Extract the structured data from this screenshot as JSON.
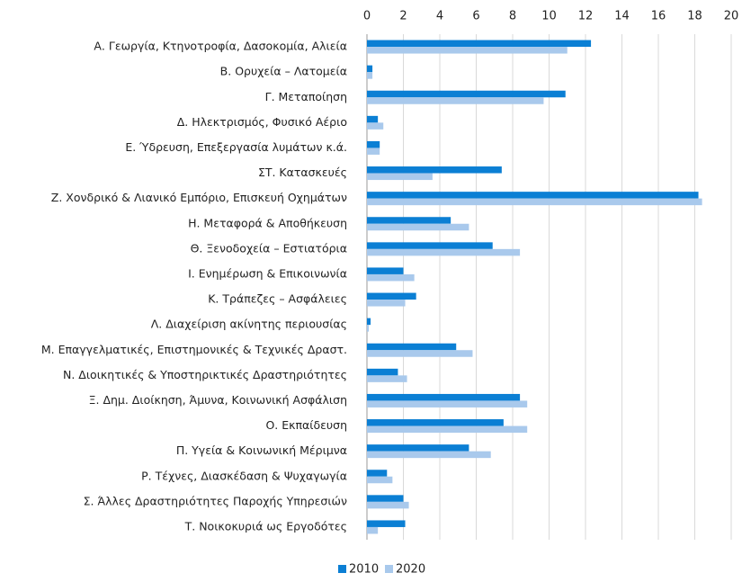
{
  "chart_data": {
    "type": "hbar",
    "categories": [
      "Α. Γεωργία, Κτηνοτροφία, Δασοκομία, Αλιεία",
      "Β. Ορυχεία – Λατομεία",
      "Γ. Μεταποίηση",
      "Δ. Ηλεκτρισμός, Φυσικό Αέριο",
      "Ε. Ύδρευση, Επεξεργασία λυμάτων κ.ά.",
      "ΣΤ. Κατασκευές",
      "Ζ. Χονδρικό & Λιανικό Εμπόριο, Επισκευή Οχημάτων",
      "Η. Μεταφορά & Αποθήκευση",
      "Θ. Ξενοδοχεία – Εστιατόρια",
      "Ι. Ενημέρωση & Επικοινωνία",
      "Κ. Τράπεζες – Ασφάλειες",
      "Λ. Διαχείριση ακίνητης περιουσίας",
      "Μ. Επαγγελματικές, Επιστημονικές & Τεχνικές Δραστ.",
      "Ν. Διοικητικές & Υποστηρικτικές Δραστηριότητες",
      "Ξ. Δημ. Διοίκηση, Άμυνα, Κοινωνική Ασφάλιση",
      "Ο. Εκπαίδευση",
      "Π. Υγεία & Κοινωνική Μέριμνα",
      "Ρ. Τέχνες, Διασκέδαση & Ψυχαγωγία",
      "Σ. Άλλες Δραστηριότητες Παροχής Υπηρεσιών",
      "Τ. Νοικοκυριά ως Εργοδότες"
    ],
    "series": [
      {
        "name": "2010",
        "color": "#0b7fd4",
        "values": [
          12.3,
          0.3,
          10.9,
          0.6,
          0.7,
          7.4,
          18.2,
          4.6,
          6.9,
          2.0,
          2.7,
          0.2,
          4.9,
          1.7,
          8.4,
          7.5,
          5.6,
          1.1,
          2.0,
          2.1
        ]
      },
      {
        "name": "2020",
        "color": "#a9c9ec",
        "values": [
          11.0,
          0.3,
          9.7,
          0.9,
          0.7,
          3.6,
          18.4,
          5.6,
          8.4,
          2.6,
          2.1,
          0.1,
          5.8,
          2.2,
          8.8,
          8.8,
          6.8,
          1.4,
          2.3,
          0.6
        ]
      }
    ],
    "xlim": [
      0,
      20
    ],
    "xticks": [
      0,
      2,
      4,
      6,
      8,
      10,
      12,
      14,
      16,
      18,
      20
    ],
    "grid": true,
    "legend": "bottom"
  }
}
